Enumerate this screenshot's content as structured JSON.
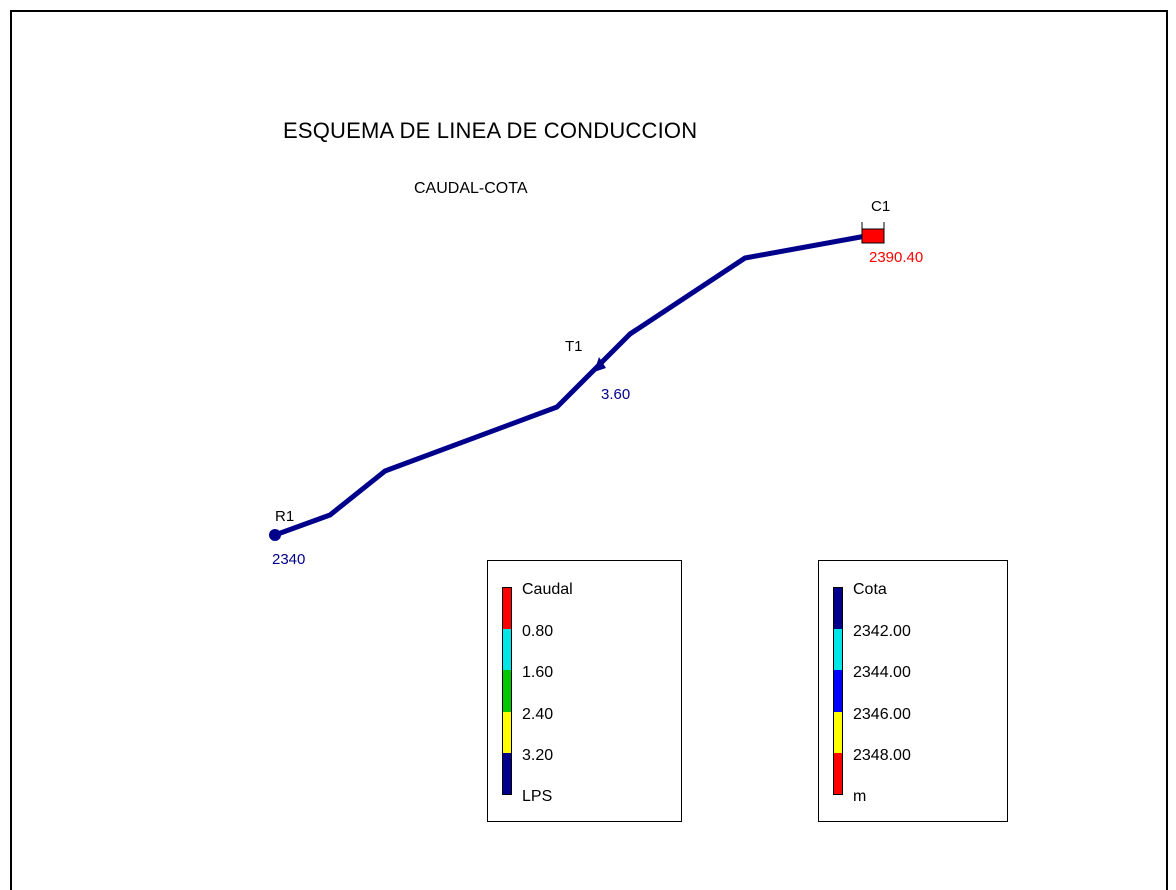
{
  "diagram": {
    "title": "ESQUEMA DE LINEA DE CONDUCCION",
    "subtitle": "CAUDAL-COTA",
    "pipe_color": "#00008b",
    "nodes": {
      "reservoir": {
        "id": "R1",
        "value": "2340",
        "value_color": "#00008b"
      },
      "tap": {
        "id": "T1",
        "value": "3.60",
        "value_color": "#00008b"
      },
      "tank": {
        "id": "C1",
        "value": "2390.40",
        "value_color": "#ff0000",
        "fill": "#ff0000"
      }
    }
  },
  "legends": {
    "caudal": {
      "title": "Caudal",
      "labels": [
        "0.80",
        "1.60",
        "2.40",
        "3.20"
      ],
      "unit": "LPS",
      "colors": [
        "#ff0000",
        "#00e5e5",
        "#00c800",
        "#ffff00",
        "#00008b"
      ]
    },
    "cota": {
      "title": "Cota",
      "labels": [
        "2342.00",
        "2344.00",
        "2346.00",
        "2348.00"
      ],
      "unit": "m",
      "colors": [
        "#00008b",
        "#00e5e5",
        "#0000ff",
        "#ffff00",
        "#ff0000"
      ]
    }
  }
}
